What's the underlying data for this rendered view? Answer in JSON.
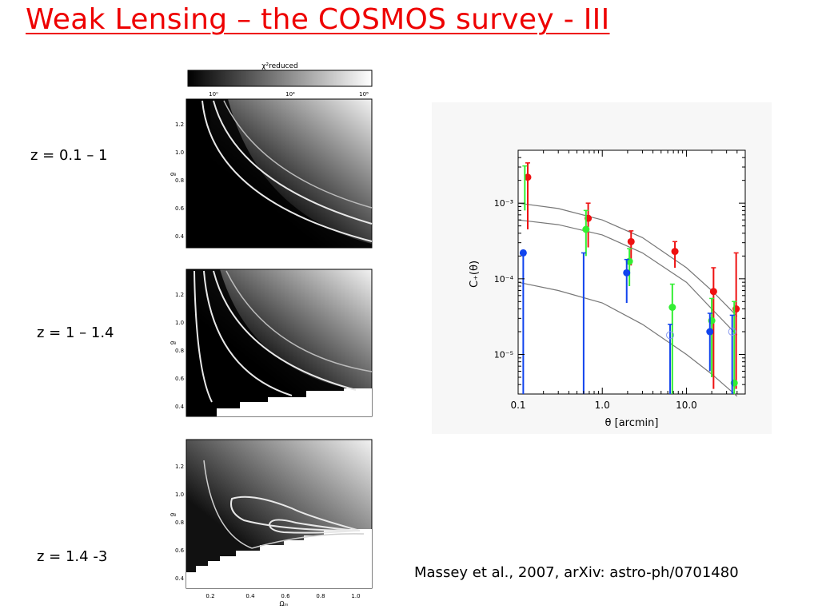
{
  "title": "Weak Lensing – the COSMOS survey - III",
  "citation": "Massey et al., 2007, arXiv: astro-ph/0701480",
  "redshift_labels": [
    "z = 0.1 – 1",
    "z = 1 – 1.4",
    "z = 1.4 -3"
  ],
  "colorbar": {
    "label": "χ²reduced",
    "ticks": [
      "10⁰",
      "10⁴",
      "10⁸"
    ]
  },
  "contour_panels": {
    "ylabel": "σ₈",
    "xlabel": "Ωₘ",
    "yticks": [
      "1.2",
      "1.0",
      "0.8",
      "0.6",
      "0.4"
    ],
    "xticks": [
      "0.2",
      "0.4",
      "0.6",
      "0.8",
      "1.0"
    ]
  },
  "chart_data": {
    "type": "scatter",
    "xlabel": "θ [arcmin]",
    "ylabel": "C₊(θ)",
    "xscale": "log",
    "yscale": "log",
    "xlim": [
      0.1,
      50
    ],
    "ylim": [
      3e-06,
      0.005
    ],
    "xticks": [
      "0.1",
      "1.0",
      "10.0"
    ],
    "yticks": [
      "10⁻³",
      "10⁻⁴",
      "10⁻⁵"
    ],
    "model_curves": [
      {
        "x": [
          0.1,
          0.3,
          1,
          3,
          10,
          20,
          40
        ],
        "y": [
          0.001,
          0.00085,
          0.0006,
          0.00035,
          0.00014,
          7e-05,
          3.2e-05
        ]
      },
      {
        "x": [
          0.1,
          0.3,
          1,
          3,
          10,
          20,
          40
        ],
        "y": [
          0.0006,
          0.00052,
          0.00038,
          0.00022,
          9e-05,
          4e-05,
          1.8e-05
        ]
      },
      {
        "x": [
          0.1,
          0.3,
          1,
          3,
          10,
          20,
          40
        ],
        "y": [
          9e-05,
          7e-05,
          4.8e-05,
          2.5e-05,
          1e-05,
          5.5e-06,
          2.8e-06
        ]
      }
    ],
    "series": [
      {
        "color": "#ee1111",
        "points": [
          {
            "x": 0.13,
            "y": 0.0022,
            "lo": 0.00045,
            "hi": 0.0034
          },
          {
            "x": 0.68,
            "y": 0.00063,
            "lo": 0.00026,
            "hi": 0.001
          },
          {
            "x": 2.2,
            "y": 0.00031,
            "lo": 0.00015,
            "hi": 0.00043
          },
          {
            "x": 7.3,
            "y": 0.00023,
            "lo": 0.00014,
            "hi": 0.00031
          },
          {
            "x": 21,
            "y": 6.8e-05,
            "lo": 3.5e-06,
            "hi": 0.00014
          },
          {
            "x": 39,
            "y": 4e-05,
            "lo": 3.5e-06,
            "hi": 0.00022
          }
        ]
      },
      {
        "color": "#33ee33",
        "points": [
          {
            "x": 0.12,
            "y": 0.0,
            "lo": 0.0008,
            "hi": 0.0031,
            "marker": false
          },
          {
            "x": 0.64,
            "y": 0.00045,
            "lo": 0.0002,
            "hi": 0.0008
          },
          {
            "x": 2.1,
            "y": 0.00017,
            "lo": 8e-05,
            "hi": 0.00025
          },
          {
            "x": 6.8,
            "y": 4.2e-05,
            "lo": 3e-06,
            "hi": 8.5e-05
          },
          {
            "x": 20,
            "y": 2.8e-05,
            "lo": 5e-06,
            "hi": 5.5e-05
          },
          {
            "x": 37,
            "y": 4.2e-06,
            "lo": 3e-06,
            "hi": 5e-05
          }
        ]
      },
      {
        "color": "#1144ee",
        "points": [
          {
            "x": 0.115,
            "y": 0.00022,
            "lo": 3e-06,
            "hi": 0.00022
          },
          {
            "x": 0.6,
            "y": 0.0,
            "lo": 3e-06,
            "hi": 0.00022,
            "marker": false
          },
          {
            "x": 1.95,
            "y": 0.00012,
            "lo": 4.8e-05,
            "hi": 0.00018
          },
          {
            "x": 6.4,
            "y": 1.8e-05,
            "lo": 3e-06,
            "hi": 2.5e-05,
            "open": true
          },
          {
            "x": 19,
            "y": 2e-05,
            "lo": 6e-06,
            "hi": 3.5e-05
          },
          {
            "x": 35,
            "y": 2e-05,
            "lo": 3e-06,
            "hi": 3.3e-05,
            "open": true
          }
        ]
      }
    ]
  }
}
